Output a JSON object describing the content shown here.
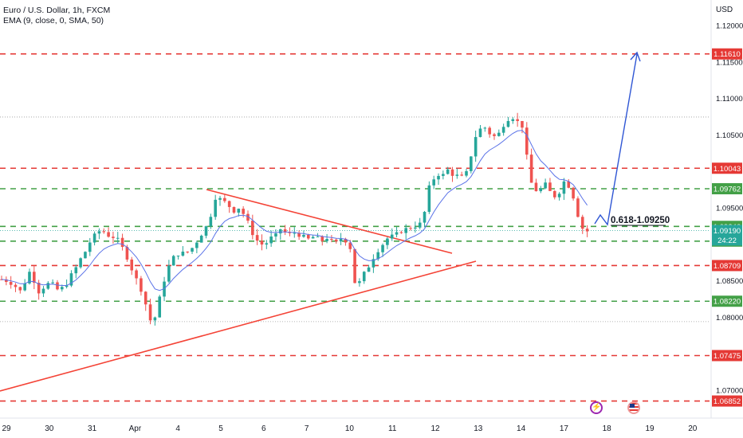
{
  "legend": {
    "symbol": "Euro / U.S. Dollar, 1h, FXCM",
    "indicator": "EMA (9, close, 0, SMA, 50)"
  },
  "currency": "USD",
  "chart_data": {
    "type": "candlestick",
    "x_ticks": [
      "29",
      "30",
      "31",
      "Apr",
      "4",
      "5",
      "6",
      "7",
      "10",
      "11",
      "12",
      "13",
      "14",
      "17",
      "18",
      "19",
      "20"
    ],
    "y_ticks": [
      "1.12000",
      "1.11500",
      "1.11000",
      "1.10500",
      "1.09500",
      "1.08500",
      "1.08000",
      "1.07000"
    ],
    "y_range": [
      1.0665,
      1.1225
    ],
    "horizontal_levels": [
      {
        "label": "1.11610",
        "value": 1.1161,
        "color": "#e53935",
        "style": "dashed"
      },
      {
        "label": "1.10043",
        "value": 1.10043,
        "color": "#e53935",
        "style": "dashed"
      },
      {
        "label": "1.09762",
        "value": 1.09762,
        "color": "#43a047",
        "style": "dashed"
      },
      {
        "label": "1.09246",
        "value": 1.09246,
        "color": "#43a047",
        "style": "dashed"
      },
      {
        "label": "1.09044",
        "value": 1.09044,
        "color": "#43a047",
        "style": "dashed"
      },
      {
        "label": "1.08709",
        "value": 1.08709,
        "color": "#e53935",
        "style": "dashed"
      },
      {
        "label": "1.08220",
        "value": 1.0822,
        "color": "#43a047",
        "style": "dashed"
      },
      {
        "label": "1.07475",
        "value": 1.07475,
        "color": "#e53935",
        "style": "dashed"
      },
      {
        "label": "1.06852",
        "value": 1.06852,
        "color": "#e53935",
        "style": "dashed"
      }
    ],
    "dotted_levels": [
      1.10745,
      1.0794
    ],
    "current_price": {
      "label": "1.09190",
      "timer": "24:22",
      "value": 1.0919
    },
    "annotation": "0.618-1.09250",
    "trendlines": [
      "descending resistance 5 Apr → 12 Apr",
      "ascending support 29 Mar → 12 Apr"
    ],
    "projection": "bounce then rise toward 1.11610",
    "price_path": [
      [
        0,
        1.0852
      ],
      [
        1,
        1.085
      ],
      [
        2,
        1.0847
      ],
      [
        3,
        1.0842
      ],
      [
        4,
        1.0836
      ],
      [
        5,
        1.0848
      ],
      [
        6,
        1.0862
      ],
      [
        7,
        1.085
      ],
      [
        8,
        1.0835
      ],
      [
        9,
        1.0841
      ],
      [
        10,
        1.0846
      ],
      [
        11,
        1.0845
      ],
      [
        12,
        1.0838
      ],
      [
        13,
        1.084
      ],
      [
        14,
        1.0846
      ],
      [
        15,
        1.0858
      ],
      [
        16,
        1.0868
      ],
      [
        17,
        1.088
      ],
      [
        18,
        1.089
      ],
      [
        19,
        1.0903
      ],
      [
        20,
        1.0912
      ],
      [
        21,
        1.0918
      ],
      [
        22,
        1.0917
      ],
      [
        23,
        1.0912
      ],
      [
        24,
        1.091
      ],
      [
        25,
        1.0906
      ],
      [
        26,
        1.0895
      ],
      [
        27,
        1.0882
      ],
      [
        28,
        1.0866
      ],
      [
        29,
        1.0852
      ],
      [
        30,
        1.0838
      ],
      [
        31,
        1.0818
      ],
      [
        32,
        1.0796
      ],
      [
        33,
        1.08
      ],
      [
        34,
        1.0826
      ],
      [
        35,
        1.0851
      ],
      [
        36,
        1.087
      ],
      [
        37,
        1.0882
      ],
      [
        38,
        1.0887
      ],
      [
        39,
        1.0888
      ],
      [
        40,
        1.089
      ],
      [
        41,
        1.0895
      ],
      [
        42,
        1.0904
      ],
      [
        43,
        1.0914
      ],
      [
        44,
        1.0924
      ],
      [
        45,
        1.094
      ],
      [
        46,
        1.0964
      ],
      [
        47,
        1.0962
      ],
      [
        48,
        1.0958
      ],
      [
        49,
        1.0952
      ],
      [
        50,
        1.0946
      ],
      [
        51,
        1.095
      ],
      [
        52,
        1.0942
      ],
      [
        53,
        1.093
      ],
      [
        54,
        1.0915
      ],
      [
        55,
        1.0905
      ],
      [
        56,
        1.09
      ],
      [
        57,
        1.0902
      ],
      [
        58,
        1.0909
      ],
      [
        59,
        1.0912
      ],
      [
        60,
        1.0921
      ],
      [
        61,
        1.0916
      ],
      [
        62,
        1.0914
      ],
      [
        63,
        1.0916
      ],
      [
        64,
        1.0913
      ],
      [
        65,
        1.091
      ],
      [
        66,
        1.0907
      ],
      [
        67,
        1.091
      ],
      [
        68,
        1.0908
      ],
      [
        69,
        1.0905
      ],
      [
        70,
        1.0909
      ],
      [
        71,
        1.0904
      ],
      [
        72,
        1.0902
      ],
      [
        73,
        1.0908
      ],
      [
        74,
        1.0905
      ],
      [
        75,
        1.0895
      ],
      [
        76,
        1.0848
      ],
      [
        77,
        1.0848
      ],
      [
        78,
        1.086
      ],
      [
        79,
        1.087
      ],
      [
        80,
        1.0882
      ],
      [
        81,
        1.0892
      ],
      [
        82,
        1.09
      ],
      [
        83,
        1.0908
      ],
      [
        84,
        1.0911
      ],
      [
        85,
        1.0914
      ],
      [
        86,
        1.0918
      ],
      [
        87,
        1.0921
      ],
      [
        88,
        1.0923
      ],
      [
        89,
        1.0925
      ],
      [
        90,
        1.0928
      ],
      [
        91,
        1.0944
      ],
      [
        92,
        1.0978
      ],
      [
        93,
        1.099
      ],
      [
        94,
        1.0996
      ],
      [
        95,
        1.0995
      ],
      [
        96,
        1.1002
      ],
      [
        97,
        1.0996
      ],
      [
        98,
        1.0994
      ],
      [
        99,
        1.0992
      ],
      [
        100,
        1.0998
      ],
      [
        101,
        1.1022
      ],
      [
        102,
        1.1048
      ],
      [
        103,
        1.1058
      ],
      [
        104,
        1.106
      ],
      [
        105,
        1.1052
      ],
      [
        106,
        1.1048
      ],
      [
        107,
        1.1052
      ],
      [
        108,
        1.1064
      ],
      [
        109,
        1.1072
      ],
      [
        110,
        1.1074
      ],
      [
        111,
        1.1068
      ],
      [
        112,
        1.1062
      ],
      [
        113,
        1.102
      ],
      [
        114,
        1.0984
      ],
      [
        115,
        1.0974
      ],
      [
        116,
        1.0976
      ],
      [
        117,
        1.0982
      ],
      [
        118,
        1.0972
      ],
      [
        119,
        1.0966
      ],
      [
        120,
        1.0972
      ],
      [
        121,
        1.0986
      ],
      [
        122,
        1.098
      ],
      [
        123,
        1.0965
      ],
      [
        124,
        1.094
      ],
      [
        125,
        1.0922
      ],
      [
        126,
        1.0918
      ]
    ]
  }
}
